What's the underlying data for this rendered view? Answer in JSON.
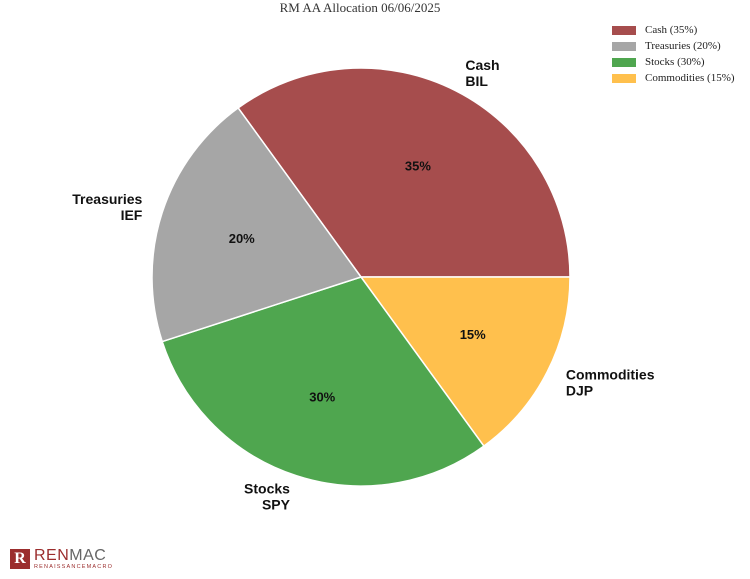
{
  "chart_data": {
    "type": "pie",
    "title": "RM AA Allocation 06/06/2025",
    "slices": [
      {
        "label": "Cash",
        "ticker": "BIL",
        "value": 35,
        "value_label": "35%",
        "legend": "Cash (35%)",
        "color": "#a64d4d"
      },
      {
        "label": "Commodities",
        "ticker": "DJP",
        "value": 15,
        "value_label": "15%",
        "legend": "Commodities (15%)",
        "color": "#ffc04d"
      },
      {
        "label": "Stocks",
        "ticker": "SPY",
        "value": 30,
        "value_label": "30%",
        "legend": "Stocks (30%)",
        "color": "#4fa64f"
      },
      {
        "label": "Treasuries",
        "ticker": "IEF",
        "value": 20,
        "value_label": "20%",
        "legend": "Treasuries (20%)",
        "color": "#a6a6a6"
      }
    ],
    "legend_order": [
      0,
      3,
      2,
      1
    ],
    "legend_position": "top-right"
  },
  "branding": {
    "logo_ren": "REN",
    "logo_mac": "MAC",
    "logo_sub": "RENAISSANCEMACRO",
    "logo_mark": "R"
  }
}
